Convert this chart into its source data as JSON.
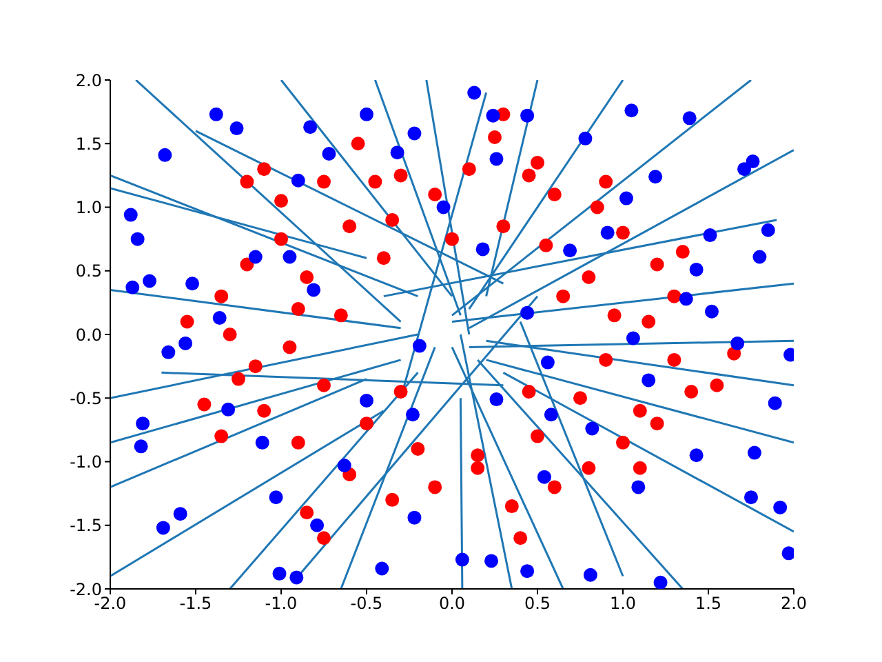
{
  "chart_data": {
    "type": "scatter",
    "marker": "circle",
    "xlim": [
      -2,
      2
    ],
    "ylim": [
      -2,
      2
    ],
    "xticks": [
      {
        "value": -2,
        "label": "-2.0"
      },
      {
        "value": -1.5,
        "label": "-1.5"
      },
      {
        "value": -1,
        "label": "-1.0"
      },
      {
        "value": -0.5,
        "label": "-0.5"
      },
      {
        "value": 0,
        "label": "0.0"
      },
      {
        "value": 0.5,
        "label": "0.5"
      },
      {
        "value": 1,
        "label": "1.0"
      },
      {
        "value": 1.5,
        "label": "1.5"
      },
      {
        "value": 2,
        "label": "2.0"
      }
    ],
    "yticks": [
      {
        "value": -2,
        "label": "-2.0"
      },
      {
        "value": -1.5,
        "label": "-1.5"
      },
      {
        "value": -1,
        "label": "-1.0"
      },
      {
        "value": -0.5,
        "label": "-0.5"
      },
      {
        "value": 0,
        "label": "0.0"
      },
      {
        "value": 0.5,
        "label": "0.5"
      },
      {
        "value": 1,
        "label": "1.0"
      },
      {
        "value": 1.5,
        "label": "1.5"
      },
      {
        "value": 2,
        "label": "2.0"
      }
    ],
    "series": [
      {
        "color": "#ff0000",
        "x": [
          -1.2,
          -1.0,
          -0.75,
          -0.55,
          -0.3,
          -0.1,
          0.1,
          0.25,
          0.45,
          0.6,
          0.85,
          1.0,
          1.2,
          1.3,
          1.15,
          1.3,
          1.4,
          1.2,
          1.0,
          0.8,
          0.6,
          0.35,
          0.15,
          -0.1,
          -0.35,
          -0.6,
          -0.75,
          -0.9,
          -1.1,
          -1.25,
          -1.3,
          -1.35,
          -1.2,
          -1.0,
          -1.45,
          -1.15,
          -0.85,
          -0.6,
          -0.35,
          0.0,
          0.3,
          0.55,
          0.8,
          0.95,
          0.9,
          0.75,
          0.5,
          0.15,
          -0.2,
          -0.5,
          -0.75,
          -0.95,
          -0.9,
          1.1,
          1.55,
          1.35,
          -1.1,
          -0.45,
          0.5,
          0.9,
          0.3,
          -0.85,
          0.4,
          1.1,
          -1.35,
          -0.4,
          0.45,
          0.65,
          -0.65,
          -0.3,
          1.65,
          -1.55
        ],
        "values": [
          1.2,
          1.05,
          1.2,
          1.5,
          1.25,
          1.1,
          1.3,
          1.55,
          1.25,
          1.1,
          1.0,
          0.8,
          0.55,
          0.3,
          0.1,
          -0.2,
          -0.45,
          -0.7,
          -0.85,
          -1.05,
          -1.2,
          -1.35,
          -1.05,
          -1.2,
          -1.3,
          -1.1,
          -1.6,
          -0.85,
          -0.6,
          -0.35,
          0.0,
          0.3,
          0.55,
          0.75,
          -0.55,
          -0.25,
          0.45,
          0.85,
          0.9,
          0.75,
          0.85,
          0.7,
          0.45,
          0.15,
          -0.2,
          -0.5,
          -0.8,
          -0.95,
          -0.9,
          -0.7,
          -0.4,
          -0.1,
          0.2,
          -0.6,
          -0.4,
          0.65,
          1.3,
          1.2,
          1.35,
          1.2,
          1.73,
          -1.4,
          -1.6,
          -1.05,
          -0.8,
          0.6,
          -0.45,
          0.3,
          0.15,
          -0.45,
          -0.15,
          0.1
        ]
      },
      {
        "color": "#0000ff",
        "x": [
          0.13,
          0.24,
          0.44,
          1.39,
          1.05,
          -1.38,
          -1.26,
          -0.72,
          -0.5,
          -0.32,
          -0.22,
          -1.68,
          1.76,
          1.71,
          1.85,
          1.8,
          -1.88,
          -1.84,
          -1.77,
          -1.87,
          -1.56,
          -1.66,
          -1.81,
          -1.82,
          -1.69,
          -1.59,
          -1.01,
          -0.91,
          -0.41,
          -0.22,
          0.06,
          0.23,
          0.44,
          0.81,
          1.22,
          1.43,
          1.75,
          1.92,
          1.97,
          1.77,
          1.89,
          1.98,
          1.67,
          1.52,
          1.37,
          1.15,
          0.91,
          1.02,
          0.69,
          0.44,
          0.56,
          0.26,
          -0.23,
          -0.5,
          -0.81,
          -0.95,
          -1.15,
          -1.36,
          -0.9,
          0.18,
          -0.05,
          -0.19,
          0.82,
          1.09,
          0.54,
          -0.63,
          -1.11,
          -1.31,
          -1.52,
          0.26,
          0.78,
          1.19,
          1.51,
          1.43,
          1.06,
          -0.79,
          -1.03,
          -0.83,
          0.58
        ],
        "values": [
          1.9,
          1.72,
          1.72,
          1.7,
          1.76,
          1.73,
          1.62,
          1.42,
          1.73,
          1.43,
          1.58,
          1.41,
          1.36,
          1.3,
          0.82,
          0.61,
          0.94,
          0.75,
          0.42,
          0.37,
          -0.07,
          -0.14,
          -0.7,
          -0.88,
          -1.52,
          -1.41,
          -1.88,
          -1.91,
          -1.84,
          -1.44,
          -1.77,
          -1.78,
          -1.86,
          -1.89,
          -1.95,
          -0.95,
          -1.28,
          -1.36,
          -1.72,
          -0.93,
          -0.54,
          -0.16,
          -0.07,
          0.18,
          0.28,
          -0.36,
          0.8,
          1.07,
          0.66,
          0.17,
          -0.22,
          -0.51,
          -0.63,
          -0.52,
          0.35,
          0.61,
          0.61,
          0.13,
          1.21,
          0.67,
          1.0,
          -0.09,
          -0.74,
          -1.2,
          -1.12,
          -1.03,
          -0.85,
          -0.59,
          0.4,
          1.38,
          1.54,
          1.24,
          0.78,
          0.51,
          -0.03,
          -1.5,
          -1.28,
          1.63,
          -0.63
        ]
      },
      {
        "type": "line",
        "color": "#1f77b4",
        "marker": "none",
        "x": [
          -2,
          -0.2
        ],
        "values": [
          1.25,
          0.3
        ]
      },
      {
        "type": "line",
        "color": "#1f77b4",
        "marker": "none",
        "x": [
          -2,
          -0.5
        ],
        "values": [
          1.15,
          0.6
        ]
      },
      {
        "type": "line",
        "color": "#1f77b4",
        "marker": "none",
        "x": [
          -2,
          -0.3
        ],
        "values": [
          0.35,
          0.05
        ]
      },
      {
        "type": "line",
        "color": "#1f77b4",
        "marker": "none",
        "x": [
          -2,
          -0.2
        ],
        "values": [
          -0.5,
          0.0
        ]
      },
      {
        "type": "line",
        "color": "#1f77b4",
        "marker": "none",
        "x": [
          -2,
          -0.3
        ],
        "values": [
          -0.85,
          -0.2
        ]
      },
      {
        "type": "line",
        "color": "#1f77b4",
        "marker": "none",
        "x": [
          -2,
          -0.5
        ],
        "values": [
          -1.2,
          -0.35
        ]
      },
      {
        "type": "line",
        "color": "#1f77b4",
        "marker": "none",
        "x": [
          -1.85,
          -0.3
        ],
        "values": [
          2,
          0.1
        ]
      },
      {
        "type": "line",
        "color": "#1f77b4",
        "marker": "none",
        "x": [
          -1.0,
          0.0
        ],
        "values": [
          2,
          0.3
        ]
      },
      {
        "type": "line",
        "color": "#1f77b4",
        "marker": "none",
        "x": [
          -0.45,
          0.05
        ],
        "values": [
          2,
          0.15
        ]
      },
      {
        "type": "line",
        "color": "#1f77b4",
        "marker": "none",
        "x": [
          -0.15,
          0.1
        ],
        "values": [
          2,
          0.0
        ]
      },
      {
        "type": "line",
        "color": "#1f77b4",
        "marker": "none",
        "x": [
          0.2,
          0.5
        ],
        "values": [
          0.3,
          2
        ]
      },
      {
        "type": "line",
        "color": "#1f77b4",
        "marker": "none",
        "x": [
          0.1,
          1.0
        ],
        "values": [
          0.2,
          2
        ]
      },
      {
        "type": "line",
        "color": "#1f77b4",
        "marker": "none",
        "x": [
          0.0,
          1.75
        ],
        "values": [
          0.15,
          2
        ]
      },
      {
        "type": "line",
        "color": "#1f77b4",
        "marker": "none",
        "x": [
          0.1,
          2
        ],
        "values": [
          0.05,
          1.45
        ]
      },
      {
        "type": "line",
        "color": "#1f77b4",
        "marker": "none",
        "x": [
          0.0,
          2
        ],
        "values": [
          0.1,
          0.4
        ]
      },
      {
        "type": "line",
        "color": "#1f77b4",
        "marker": "none",
        "x": [
          0.1,
          2
        ],
        "values": [
          -0.1,
          -0.05
        ]
      },
      {
        "type": "line",
        "color": "#1f77b4",
        "marker": "none",
        "x": [
          0.2,
          2
        ],
        "values": [
          -0.05,
          -0.4
        ]
      },
      {
        "type": "line",
        "color": "#1f77b4",
        "marker": "none",
        "x": [
          0.2,
          2
        ],
        "values": [
          -0.2,
          -0.85
        ]
      },
      {
        "type": "line",
        "color": "#1f77b4",
        "marker": "none",
        "x": [
          0.3,
          2
        ],
        "values": [
          -0.3,
          -1.55
        ]
      },
      {
        "type": "line",
        "color": "#1f77b4",
        "marker": "none",
        "x": [
          0.15,
          1.35
        ],
        "values": [
          -0.2,
          -2
        ]
      },
      {
        "type": "line",
        "color": "#1f77b4",
        "marker": "none",
        "x": [
          0.0,
          0.65
        ],
        "values": [
          -0.1,
          -2
        ]
      },
      {
        "type": "line",
        "color": "#1f77b4",
        "marker": "none",
        "x": [
          0.05,
          0.35
        ],
        "values": [
          0.0,
          -2
        ]
      },
      {
        "type": "line",
        "color": "#1f77b4",
        "marker": "none",
        "x": [
          0.05,
          0.06
        ],
        "values": [
          -0.5,
          -2
        ]
      },
      {
        "type": "line",
        "color": "#1f77b4",
        "marker": "none",
        "x": [
          -0.65,
          -0.1
        ],
        "values": [
          -2,
          -0.1
        ]
      },
      {
        "type": "line",
        "color": "#1f77b4",
        "marker": "none",
        "x": [
          -1.3,
          -0.2
        ],
        "values": [
          -2,
          -0.3
        ]
      },
      {
        "type": "line",
        "color": "#1f77b4",
        "marker": "none",
        "x": [
          -2,
          -0.4
        ],
        "values": [
          -1.9,
          -0.6
        ]
      },
      {
        "type": "line",
        "color": "#1f77b4",
        "marker": "none",
        "x": [
          -1.5,
          0.3
        ],
        "values": [
          1.6,
          0.4
        ]
      },
      {
        "type": "line",
        "color": "#1f77b4",
        "marker": "none",
        "x": [
          0.4,
          1.0
        ],
        "values": [
          0.1,
          -1.9
        ]
      },
      {
        "type": "line",
        "color": "#1f77b4",
        "marker": "none",
        "x": [
          -1.7,
          0.3
        ],
        "values": [
          -0.3,
          -0.4
        ]
      },
      {
        "type": "line",
        "color": "#1f77b4",
        "marker": "none",
        "x": [
          -0.4,
          1.9
        ],
        "values": [
          0.3,
          0.9
        ]
      },
      {
        "type": "line",
        "color": "#1f77b4",
        "marker": "none",
        "x": [
          -0.3,
          0.2
        ],
        "values": [
          -0.5,
          1.9
        ]
      },
      {
        "type": "line",
        "color": "#1f77b4",
        "marker": "none",
        "x": [
          -0.9,
          0.5
        ],
        "values": [
          -1.9,
          0.3
        ]
      }
    ]
  }
}
